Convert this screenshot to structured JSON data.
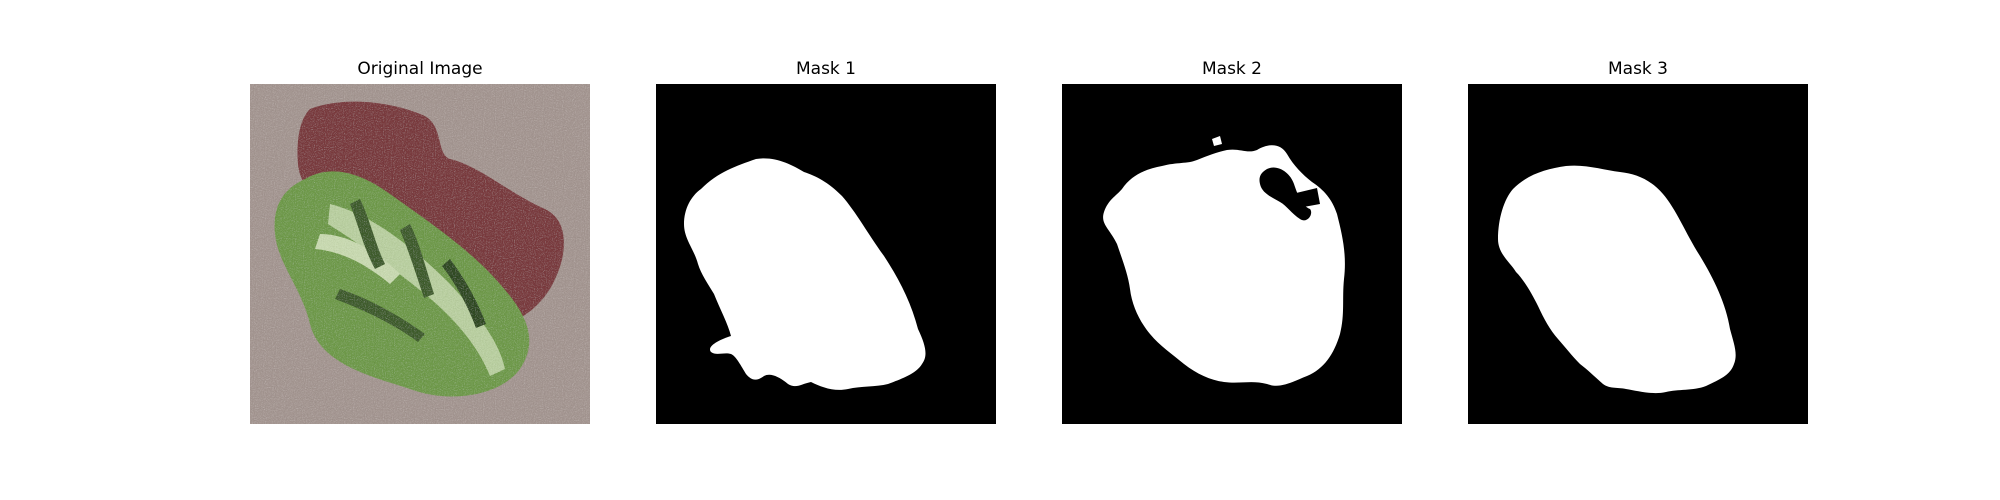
{
  "panels": [
    {
      "title": "Original Image"
    },
    {
      "title": "Mask 1"
    },
    {
      "title": "Mask 2"
    },
    {
      "title": "Mask 3"
    }
  ],
  "colors": {
    "background": "#ffffff",
    "mask_background": "#000000",
    "mask_foreground": "#ffffff",
    "leaf_green": "#6f9a4a",
    "leaf_light": "#b9cfa0",
    "shadow_maroon": "#7a3a3e",
    "ground_gray": "#a49691"
  }
}
